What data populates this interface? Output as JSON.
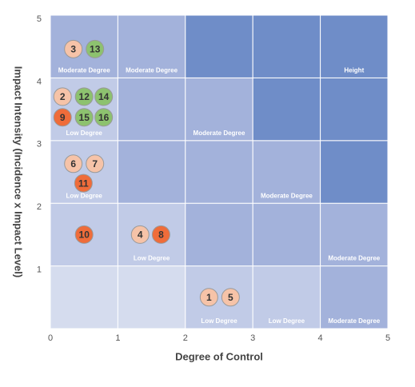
{
  "chart_data": {
    "type": "risk-matrix",
    "xlabel": "Degree of Control",
    "ylabel": "Impact Intensity (Incidence x Impact Level)",
    "xlim": [
      0,
      5
    ],
    "ylim": [
      0,
      5
    ],
    "xticks": [
      0,
      1,
      2,
      3,
      4,
      5
    ],
    "yticks": [
      1,
      2,
      3,
      4,
      5
    ],
    "cells": [
      {
        "x": [
          0,
          1
        ],
        "y": [
          0,
          1
        ],
        "color": "#d5dcee"
      },
      {
        "x": [
          1,
          2
        ],
        "y": [
          0,
          1
        ],
        "color": "#d5dcee"
      },
      {
        "x": [
          2,
          3
        ],
        "y": [
          0,
          1
        ],
        "color": "#c1cbe7",
        "label": "Low Degree"
      },
      {
        "x": [
          3,
          4
        ],
        "y": [
          0,
          1
        ],
        "color": "#c1cbe7",
        "label": "Low Degree"
      },
      {
        "x": [
          4,
          5
        ],
        "y": [
          0,
          1
        ],
        "color": "#a3b2db",
        "label": "Moderate Degree"
      },
      {
        "x": [
          0,
          1
        ],
        "y": [
          1,
          2
        ],
        "color": "#c1cbe7"
      },
      {
        "x": [
          1,
          2
        ],
        "y": [
          1,
          2
        ],
        "color": "#c1cbe7",
        "label": "Low Degree"
      },
      {
        "x": [
          2,
          3
        ],
        "y": [
          1,
          2
        ],
        "color": "#a3b2db"
      },
      {
        "x": [
          3,
          4
        ],
        "y": [
          1,
          2
        ],
        "color": "#a3b2db"
      },
      {
        "x": [
          4,
          5
        ],
        "y": [
          1,
          2
        ],
        "color": "#a3b2db",
        "label": "Moderate Degree"
      },
      {
        "x": [
          0,
          1
        ],
        "y": [
          2,
          3
        ],
        "color": "#c1cbe7",
        "label": "Low Degree"
      },
      {
        "x": [
          1,
          2
        ],
        "y": [
          2,
          3
        ],
        "color": "#a3b2db"
      },
      {
        "x": [
          2,
          3
        ],
        "y": [
          2,
          3
        ],
        "color": "#a3b2db"
      },
      {
        "x": [
          3,
          4
        ],
        "y": [
          2,
          3
        ],
        "color": "#a3b2db",
        "label": "Moderate Degree"
      },
      {
        "x": [
          4,
          5
        ],
        "y": [
          2,
          3
        ],
        "color": "#6f8dc8"
      },
      {
        "x": [
          0,
          1
        ],
        "y": [
          3,
          4
        ],
        "color": "#c1cbe7",
        "label": "Low Degree"
      },
      {
        "x": [
          1,
          2
        ],
        "y": [
          3,
          4
        ],
        "color": "#a3b2db"
      },
      {
        "x": [
          2,
          3
        ],
        "y": [
          3,
          4
        ],
        "color": "#a3b2db",
        "label": "Moderate Degree"
      },
      {
        "x": [
          3,
          4
        ],
        "y": [
          3,
          4
        ],
        "color": "#6f8dc8"
      },
      {
        "x": [
          4,
          5
        ],
        "y": [
          3,
          4
        ],
        "color": "#6f8dc8"
      },
      {
        "x": [
          0,
          1
        ],
        "y": [
          4,
          5
        ],
        "color": "#a3b2db",
        "label": "Moderate Degree"
      },
      {
        "x": [
          1,
          2
        ],
        "y": [
          4,
          5
        ],
        "color": "#a3b2db",
        "label": "Moderate Degree"
      },
      {
        "x": [
          2,
          3
        ],
        "y": [
          4,
          5
        ],
        "color": "#6f8dc8"
      },
      {
        "x": [
          3,
          4
        ],
        "y": [
          4,
          5
        ],
        "color": "#6f8dc8"
      },
      {
        "x": [
          4,
          5
        ],
        "y": [
          4,
          5
        ],
        "color": "#6f8dc8",
        "label": "Height"
      }
    ],
    "points": [
      {
        "label": "3",
        "x": 0.34,
        "y": 4.46,
        "color": "#f6c3a8"
      },
      {
        "label": "13",
        "x": 0.66,
        "y": 4.46,
        "color": "#8dc26f"
      },
      {
        "label": "2",
        "x": 0.18,
        "y": 3.7,
        "color": "#f6c3a8"
      },
      {
        "label": "12",
        "x": 0.5,
        "y": 3.7,
        "color": "#8dc26f"
      },
      {
        "label": "14",
        "x": 0.79,
        "y": 3.7,
        "color": "#8dc26f"
      },
      {
        "label": "9",
        "x": 0.18,
        "y": 3.37,
        "color": "#ef6c3a"
      },
      {
        "label": "15",
        "x": 0.5,
        "y": 3.37,
        "color": "#8dc26f"
      },
      {
        "label": "16",
        "x": 0.79,
        "y": 3.37,
        "color": "#8dc26f"
      },
      {
        "label": "6",
        "x": 0.34,
        "y": 2.63,
        "color": "#f6c3a8"
      },
      {
        "label": "7",
        "x": 0.66,
        "y": 2.63,
        "color": "#f6c3a8"
      },
      {
        "label": "11",
        "x": 0.49,
        "y": 2.32,
        "color": "#ef6c3a"
      },
      {
        "label": "10",
        "x": 0.5,
        "y": 1.5,
        "color": "#ef6c3a"
      },
      {
        "label": "4",
        "x": 1.33,
        "y": 1.5,
        "color": "#f6c3a8"
      },
      {
        "label": "8",
        "x": 1.64,
        "y": 1.5,
        "color": "#ef6c3a"
      },
      {
        "label": "1",
        "x": 2.35,
        "y": 0.5,
        "color": "#f6c3a8"
      },
      {
        "label": "5",
        "x": 2.67,
        "y": 0.5,
        "color": "#f6c3a8"
      }
    ]
  }
}
